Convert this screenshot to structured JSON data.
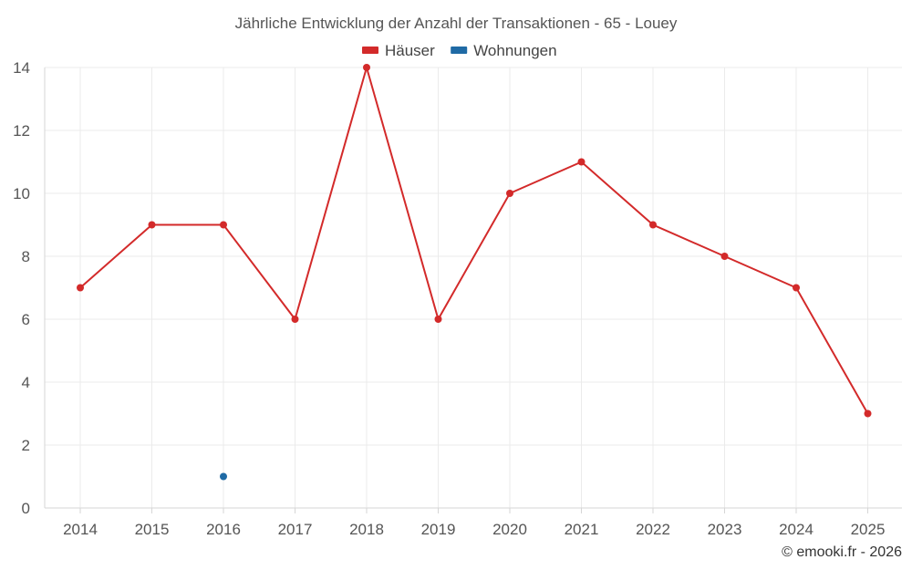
{
  "chart_data": {
    "type": "line",
    "title": "Jährliche Entwicklung der Anzahl der Transaktionen - 65 - Louey",
    "categories": [
      "2014",
      "2015",
      "2016",
      "2017",
      "2018",
      "2019",
      "2020",
      "2021",
      "2022",
      "2023",
      "2024",
      "2025"
    ],
    "series": [
      {
        "name": "Häuser",
        "color": "#d32a2a",
        "values": [
          7,
          9,
          9,
          6,
          14,
          6,
          10,
          11,
          9,
          8,
          7,
          3
        ]
      },
      {
        "name": "Wohnungen",
        "color": "#1f6aa5",
        "values": [
          null,
          null,
          1,
          null,
          null,
          null,
          null,
          null,
          null,
          null,
          null,
          null
        ]
      }
    ],
    "ylim": [
      0,
      14
    ],
    "yticks": [
      0,
      2,
      4,
      6,
      8,
      10,
      12,
      14
    ],
    "xlabel": "",
    "ylabel": "",
    "grid": true,
    "legend_position": "top-center"
  },
  "credit": "© emooki.fr - 2026"
}
